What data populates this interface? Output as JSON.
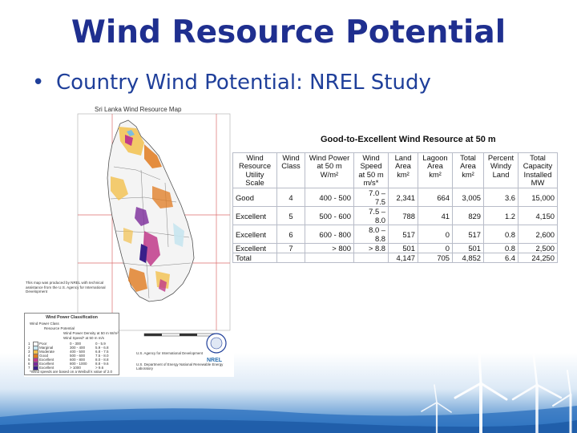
{
  "slide": {
    "title": "Wind Resource Potential",
    "bullet_marker": "•",
    "bullet": "Country Wind Potential: NREL Study"
  },
  "map": {
    "title": "Sri Lanka Wind Resource Map",
    "credit": "This map was produced by NREL with technical assistance from the U.S. Agency for International Development",
    "classification": {
      "title": "Wind Power Classification",
      "headers": [
        "Wind Power Class",
        "Resource Potential",
        "Wind Power Density at 50 m W/m²",
        "Wind Speed* at 50 m m/s"
      ],
      "rows": [
        {
          "cls": "1",
          "potential": "Poor",
          "power": "0 - 300",
          "speed": "0 - 5.9",
          "color": "#ffffff"
        },
        {
          "cls": "2",
          "potential": "Marginal",
          "power": "300 - 400",
          "speed": "5.9 - 6.8",
          "color": "#c8e6f0"
        },
        {
          "cls": "3",
          "potential": "Moderate",
          "power": "400 - 500",
          "speed": "6.8 - 7.5",
          "color": "#f2c14e"
        },
        {
          "cls": "4",
          "potential": "Good",
          "power": "500 - 600",
          "speed": "7.5 - 8.0",
          "color": "#e07a1f"
        },
        {
          "cls": "5",
          "potential": "Excellent",
          "power": "600 - 800",
          "speed": "8.0 - 8.8",
          "color": "#c03a8a"
        },
        {
          "cls": "6",
          "potential": "Excellent",
          "power": "800 - 1000",
          "speed": "8.8 - 9.6",
          "color": "#7a2a9a"
        },
        {
          "cls": "7",
          "potential": "Excellent",
          "power": "> 1000",
          "speed": "> 9.6",
          "color": "#3a1f8a"
        }
      ],
      "footnote": "*Wind speeds are based on a Weibull k value of 2.0"
    },
    "agency1": "U.S. Agency for International Development",
    "agency2": "U.S. Department of Energy National Renewable Energy Laboratory",
    "nrel": "NREL"
  },
  "table": {
    "title": "Good-to-Excellent Wind Resource at 50 m",
    "headers": [
      "Wind Resource Utility Scale",
      "Wind Class",
      "Wind Power at 50 m W/m²",
      "Wind Speed at 50 m m/s*",
      "Land Area km²",
      "Lagoon Area km²",
      "Total Area km²",
      "Percent Windy Land",
      "Total Capacity Installed MW"
    ],
    "rows": [
      [
        "Good",
        "4",
        "400 - 500",
        "7.0 – 7.5",
        "2,341",
        "664",
        "3,005",
        "3.6",
        "15,000"
      ],
      [
        "Excellent",
        "5",
        "500 - 600",
        "7.5 – 8.0",
        "788",
        "41",
        "829",
        "1.2",
        "4,150"
      ],
      [
        "Excellent",
        "6",
        "600 - 800",
        "8.0 – 8.8",
        "517",
        "0",
        "517",
        "0.8",
        "2,600"
      ],
      [
        "Excellent",
        "7",
        "> 800",
        "> 8.8",
        "501",
        "0",
        "501",
        "0.8",
        "2,500"
      ],
      [
        "Total",
        "",
        "",
        "",
        "4,147",
        "705",
        "4,852",
        "6.4",
        "24,250"
      ]
    ]
  }
}
